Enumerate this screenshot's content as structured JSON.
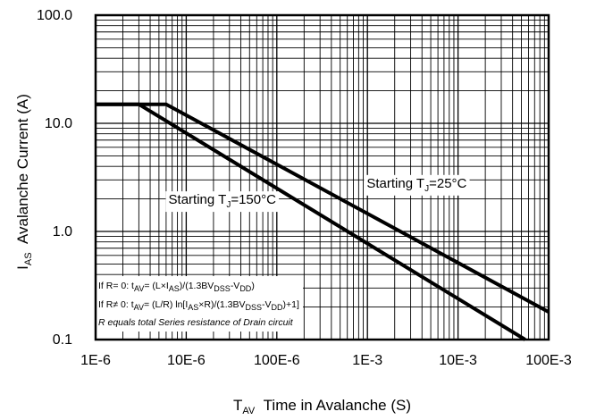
{
  "chart_data": {
    "type": "line",
    "x_scale": "log",
    "y_scale": "log",
    "xlim": [
      1e-06,
      0.1
    ],
    "ylim": [
      0.1,
      100
    ],
    "grid": true,
    "x_ticks": [
      {
        "value": 1e-06,
        "label": "1E-6"
      },
      {
        "value": 1e-05,
        "label": "10E-6"
      },
      {
        "value": 0.0001,
        "label": "100E-6"
      },
      {
        "value": 0.001,
        "label": "1E-3"
      },
      {
        "value": 0.01,
        "label": "10E-3"
      },
      {
        "value": 0.1,
        "label": "100E-3"
      }
    ],
    "y_ticks": [
      {
        "value": 0.1,
        "label": "0.1"
      },
      {
        "value": 1,
        "label": "1.0"
      },
      {
        "value": 10,
        "label": "10.0"
      },
      {
        "value": 100,
        "label": "100.0"
      }
    ],
    "xlabel": {
      "main": "T",
      "sub": "AV",
      "rest": "Time in Avalanche (S)"
    },
    "ylabel": {
      "main": "I",
      "sub": "AS",
      "rest": "Avalanche Current (A)"
    },
    "series": [
      {
        "name": "Starting TJ=25°C",
        "label": {
          "pre": "Starting T",
          "sub": "J",
          "post": "=25°C"
        },
        "label_at": {
          "x": 0.0035,
          "y": 2.55
        },
        "x": [
          1e-06,
          6e-06,
          0.1
        ],
        "y": [
          15,
          15,
          0.18
        ]
      },
      {
        "name": "Starting TJ=150°C",
        "label": {
          "pre": "Starting T",
          "sub": "J",
          "post": "=150°C"
        },
        "label_at": {
          "x": 2.5e-05,
          "y": 1.8
        },
        "x": [
          1e-06,
          3e-06,
          0.055
        ],
        "y": [
          15,
          15,
          0.1
        ]
      }
    ],
    "notes": [
      [
        {
          "t": "If R= 0: t"
        },
        {
          "t": "AV",
          "sub": true
        },
        {
          "t": "= (L×I"
        },
        {
          "t": "AS",
          "sub": true
        },
        {
          "t": ")/(1.3BV"
        },
        {
          "t": "DSS",
          "sub": true
        },
        {
          "t": "-V"
        },
        {
          "t": "DD",
          "sub": true
        },
        {
          "t": ")"
        }
      ],
      [
        {
          "t": "If R≠ 0: t"
        },
        {
          "t": "AV",
          "sub": true
        },
        {
          "t": "= (L/R) ln[I"
        },
        {
          "t": "AS",
          "sub": true
        },
        {
          "t": "×R)/(1.3BV"
        },
        {
          "t": "DSS",
          "sub": true
        },
        {
          "t": "-V"
        },
        {
          "t": "DD",
          "sub": true
        },
        {
          "t": ")+1]"
        }
      ],
      [
        {
          "t": "R equals total Series resistance of Drain circuit",
          "italic": true
        }
      ]
    ]
  }
}
